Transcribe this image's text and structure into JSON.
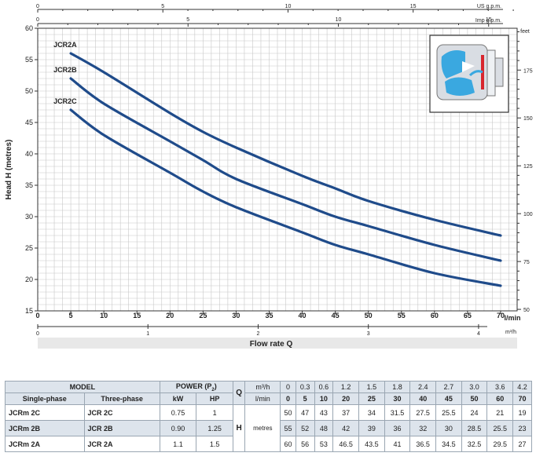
{
  "chart_data": {
    "type": "line",
    "xlabel": "Flow rate Q",
    "ylabel": "Head H  (metres)",
    "xlim": [
      0,
      72.5
    ],
    "ylim": [
      15,
      60
    ],
    "x_ticks_lmin": [
      "5",
      "10",
      "15",
      "20",
      "25",
      "30",
      "35",
      "40",
      "45",
      "50",
      "55",
      "60",
      "65",
      "70"
    ],
    "x_zero": "0",
    "x_unit": "l/min",
    "y_ticks_m": [
      "15",
      "20",
      "25",
      "30",
      "35",
      "40",
      "45",
      "50",
      "55",
      "60"
    ],
    "top_axis_us": {
      "unit": "US g.p.m.",
      "ticks": [
        "0",
        "5",
        "10",
        "15"
      ]
    },
    "top_axis_imp": {
      "unit": "Imp g.p.m.",
      "ticks": [
        "0",
        "5",
        "10",
        "15"
      ]
    },
    "bottom_axis_m3h": {
      "unit": "m³/h",
      "ticks": [
        "0",
        "1",
        "2",
        "3",
        "4"
      ]
    },
    "right_axis_feet": {
      "unit": "feet",
      "ticks": [
        "50",
        "75",
        "100",
        "125",
        "150",
        "175"
      ]
    },
    "grid": true,
    "series": [
      {
        "name": "JCR2A",
        "x": [
          5,
          10,
          20,
          25,
          30,
          40,
          45,
          50,
          60,
          70
        ],
        "values": [
          56,
          53,
          46.5,
          43.5,
          41,
          36.5,
          34.5,
          32.5,
          29.5,
          27
        ]
      },
      {
        "name": "JCR2B",
        "x": [
          5,
          10,
          20,
          25,
          30,
          40,
          45,
          50,
          60,
          70
        ],
        "values": [
          52,
          48,
          42,
          39,
          36,
          32,
          30,
          28.5,
          25.5,
          23
        ]
      },
      {
        "name": "JCR2C",
        "x": [
          5,
          10,
          20,
          25,
          30,
          40,
          45,
          50,
          60,
          70
        ],
        "values": [
          47,
          43,
          37,
          34,
          31.5,
          27.5,
          25.5,
          24,
          21,
          19
        ]
      }
    ]
  },
  "table": {
    "model_header": "MODEL",
    "power_header": "POWER (P",
    "power_sub": "2",
    "power_close": ")",
    "single_phase": "Single-phase",
    "three_phase": "Three-phase",
    "kw": "kW",
    "hp": "HP",
    "q_label": "Q",
    "m3h_label": "m³/h",
    "lmin_label": "l/min",
    "h_label": "H",
    "metres_label": "metres",
    "q_m3h": [
      "0",
      "0.3",
      "0.6",
      "1.2",
      "1.5",
      "1.8",
      "2.4",
      "2.7",
      "3.0",
      "3.6",
      "4.2"
    ],
    "q_lmin": [
      "0",
      "5",
      "10",
      "20",
      "25",
      "30",
      "40",
      "45",
      "50",
      "60",
      "70"
    ],
    "rows": [
      {
        "single": "JCRm 2C",
        "three": "JCR 2C",
        "kw": "0.75",
        "hp": "1",
        "h": [
          "50",
          "47",
          "43",
          "37",
          "34",
          "31.5",
          "27.5",
          "25.5",
          "24",
          "21",
          "19"
        ]
      },
      {
        "single": "JCRm 2B",
        "three": "JCR 2B",
        "kw": "0.90",
        "hp": "1.25",
        "h": [
          "55",
          "52",
          "48",
          "42",
          "39",
          "36",
          "32",
          "30",
          "28.5",
          "25.5",
          "23"
        ]
      },
      {
        "single": "JCRm 2A",
        "three": "JCR 2A",
        "kw": "1.1",
        "hp": "1.5",
        "h": [
          "60",
          "56",
          "53",
          "46.5",
          "43.5",
          "41",
          "36.5",
          "34.5",
          "32.5",
          "29.5",
          "27"
        ]
      }
    ]
  },
  "colors": {
    "curve": "#1f4b8a",
    "grid": "#c8c8c8",
    "band": "#dde4ec",
    "pump_blue": "#3aa8e0",
    "pump_red": "#d8262e"
  }
}
